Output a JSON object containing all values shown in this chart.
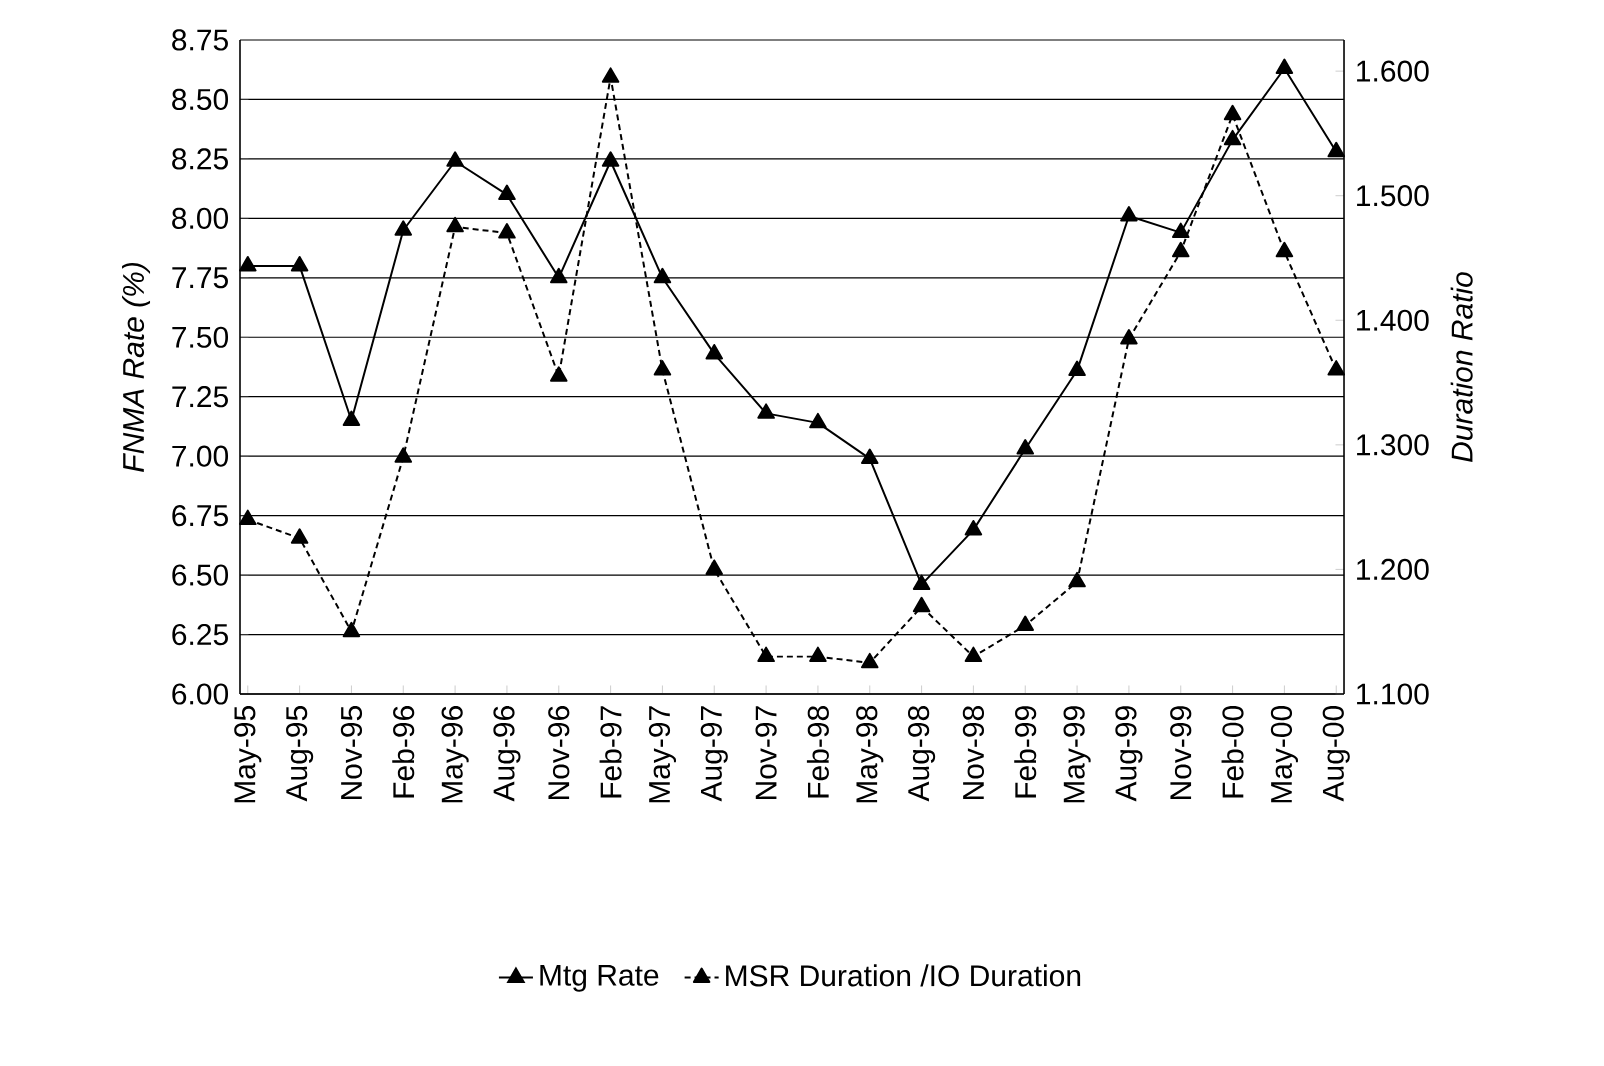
{
  "chart_data": {
    "type": "line",
    "categories": [
      "May-95",
      "Aug-95",
      "Nov-95",
      "Feb-96",
      "May-96",
      "Aug-96",
      "Nov-96",
      "Feb-97",
      "May-97",
      "Aug-97",
      "Nov-97",
      "Feb-98",
      "May-98",
      "Aug-98",
      "Nov-98",
      "Feb-99",
      "May-99",
      "Aug-99",
      "Nov-99",
      "Feb-00",
      "May-00",
      "Aug-00"
    ],
    "series": [
      {
        "name": "Mtg Rate",
        "color": "#000000",
        "line_style": "solid",
        "values": [
          7.8,
          7.8,
          7.15,
          7.95,
          8.24,
          8.1,
          7.75,
          8.24,
          7.75,
          7.43,
          7.18,
          7.14,
          6.99,
          6.46,
          6.69,
          7.03,
          7.36,
          8.01,
          7.94,
          8.33,
          8.63,
          8.28
        ]
      },
      {
        "name": "MSR Duration /IO Duration",
        "color": "#000000",
        "line_style": "dashed",
        "axis": "y2",
        "values": [
          1.24,
          1.225,
          1.15,
          1.29,
          1.475,
          1.47,
          1.355,
          1.595,
          1.36,
          1.2,
          1.13,
          1.13,
          1.125,
          1.17,
          1.13,
          1.155,
          1.19,
          1.385,
          1.455,
          1.565,
          1.455,
          1.36
        ]
      }
    ],
    "ylabel": "FNMA Rate (%)",
    "y2label": "Duration Ratio",
    "ylim": [
      6.0,
      8.75
    ],
    "yticks": [
      {
        "value": 6.0,
        "label": "6.00"
      },
      {
        "value": 6.25,
        "label": "6.25"
      },
      {
        "value": 6.5,
        "label": "6.50"
      },
      {
        "value": 6.75,
        "label": "6.75"
      },
      {
        "value": 7.0,
        "label": "7.00"
      },
      {
        "value": 7.25,
        "label": "7.25"
      },
      {
        "value": 7.5,
        "label": "7.50"
      },
      {
        "value": 7.75,
        "label": "7.75"
      },
      {
        "value": 8.0,
        "label": "8.00"
      },
      {
        "value": 8.25,
        "label": "8.25"
      },
      {
        "value": 8.5,
        "label": "8.50"
      },
      {
        "value": 8.75,
        "label": "8.75"
      }
    ],
    "y2lim": [
      1.1,
      1.625
    ],
    "y2ticks": [
      {
        "value": 1.1,
        "label": "1.100"
      },
      {
        "value": 1.2,
        "label": "1.200"
      },
      {
        "value": 1.3,
        "label": "1.300"
      },
      {
        "value": 1.4,
        "label": "1.400"
      },
      {
        "value": 1.5,
        "label": "1.500"
      },
      {
        "value": 1.6,
        "label": "1.600"
      }
    ],
    "grid": "y",
    "legend": "bottom",
    "marker": "triangle"
  }
}
